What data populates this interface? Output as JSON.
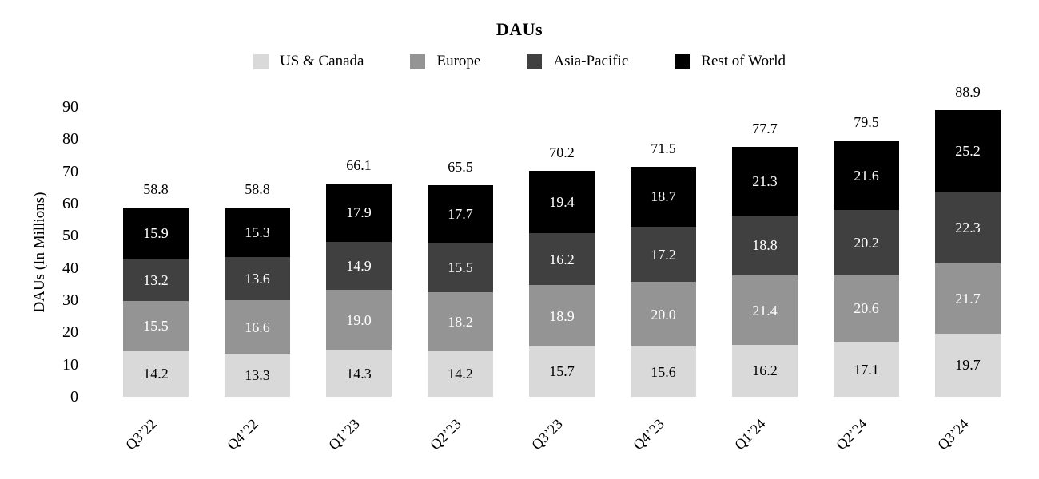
{
  "chart_data": {
    "type": "bar",
    "stacked": true,
    "title": "DAUs",
    "ylabel": "DAUs (In Millions)",
    "xlabel": "",
    "ylim": [
      0,
      90
    ],
    "y_ticks": [
      0,
      10,
      20,
      30,
      40,
      50,
      60,
      70,
      80,
      90
    ],
    "grid": false,
    "legend_position": "top",
    "categories": [
      "Q3’22",
      "Q4’22",
      "Q1’23",
      "Q2’23",
      "Q3’23",
      "Q4’23",
      "Q1’24",
      "Q2’24",
      "Q3’24"
    ],
    "series": [
      {
        "name": "US & Canada",
        "color": "#d9d9d9",
        "label_color": "#000000",
        "values": [
          14.2,
          13.3,
          14.3,
          14.2,
          15.7,
          15.6,
          16.2,
          17.1,
          19.7
        ]
      },
      {
        "name": "Europe",
        "color": "#949494",
        "label_color": "#ffffff",
        "values": [
          15.5,
          16.6,
          19.0,
          18.2,
          18.9,
          20.0,
          21.4,
          20.6,
          21.7
        ]
      },
      {
        "name": "Asia-Pacific",
        "color": "#404040",
        "label_color": "#ffffff",
        "values": [
          13.2,
          13.6,
          14.9,
          15.5,
          16.2,
          17.2,
          18.8,
          20.2,
          22.3
        ]
      },
      {
        "name": "Rest of World",
        "color": "#000000",
        "label_color": "#ffffff",
        "values": [
          15.9,
          15.3,
          17.9,
          17.7,
          19.4,
          18.7,
          21.3,
          21.6,
          25.2
        ]
      }
    ],
    "totals": [
      58.8,
      58.8,
      66.1,
      65.5,
      70.2,
      71.5,
      77.7,
      79.5,
      88.9
    ]
  }
}
